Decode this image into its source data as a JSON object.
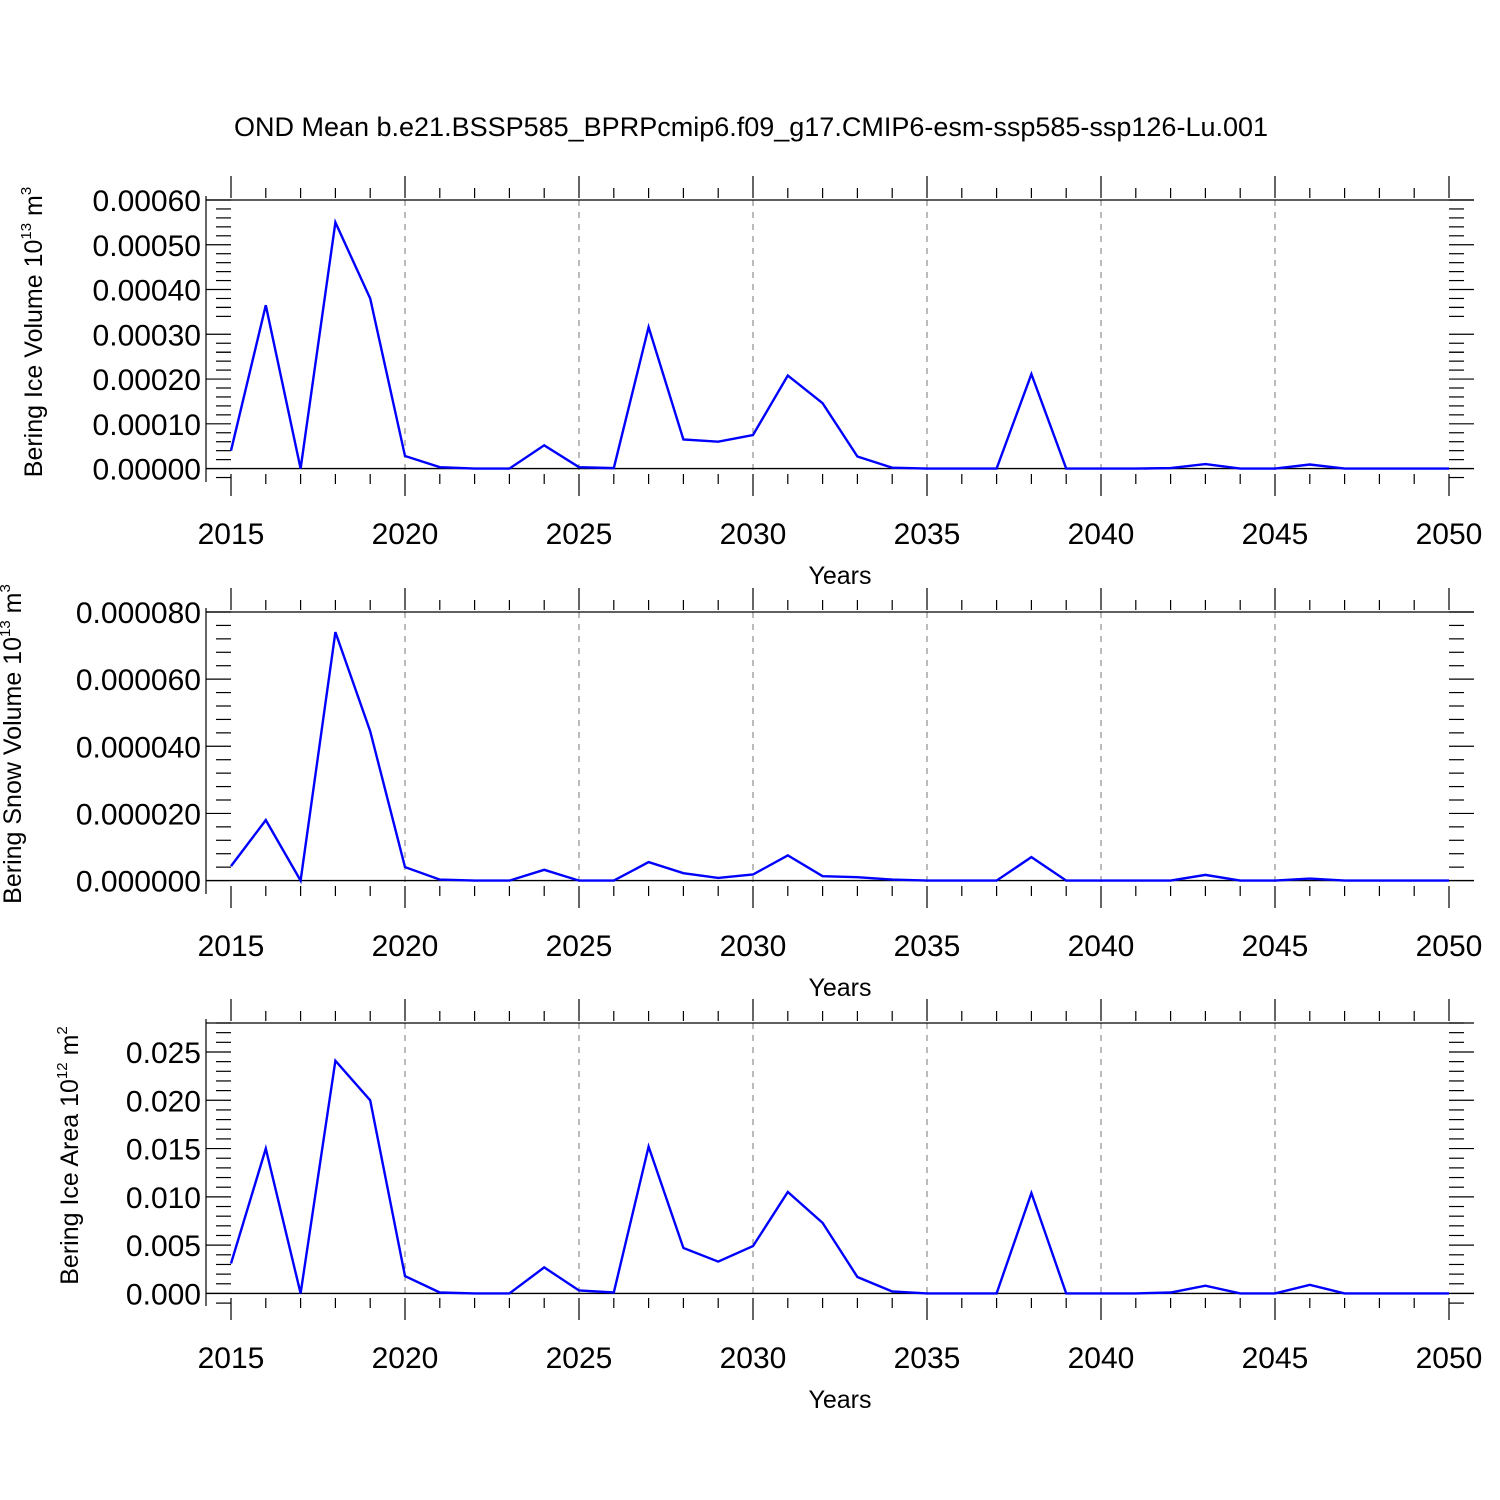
{
  "title": "OND Mean b.e21.BSSP585_BPRPcmip6.f09_g17.CMIP6-esm-ssp585-ssp126-Lu.001",
  "colors": {
    "line": "#0000ff",
    "axis": "#000000",
    "grid": "#777777"
  },
  "chart_data": [
    {
      "type": "line",
      "ylabel": "Bering Ice Volume 10",
      "ylabel_exponent": "13",
      "ylabel_unit": " m",
      "ylabel_unit_exponent": "3",
      "xlabel": "Years",
      "xlim": [
        2015,
        2050
      ],
      "ylim": [
        -3e-05,
        0.0006
      ],
      "yticks": [
        0,
        0.0001,
        0.0002,
        0.0003,
        0.0004,
        0.0005,
        0.0006
      ],
      "ytick_labels": [
        "0.00000",
        "0.00010",
        "0.00020",
        "0.00030",
        "0.00040",
        "0.00050",
        "0.00060"
      ],
      "xticks": [
        2015,
        2020,
        2025,
        2030,
        2035,
        2040,
        2045,
        2050
      ],
      "xtick_labels": [
        "2015",
        "2020",
        "2025",
        "2030",
        "2035",
        "2040",
        "2045",
        "2050"
      ],
      "grid": "vertical dashed at major x ticks",
      "x": [
        2015,
        2016,
        2017,
        2018,
        2019,
        2020,
        2021,
        2022,
        2023,
        2024,
        2025,
        2026,
        2027,
        2028,
        2029,
        2030,
        2031,
        2032,
        2033,
        2034,
        2035,
        2036,
        2037,
        2038,
        2039,
        2040,
        2041,
        2042,
        2043,
        2044,
        2045,
        2046,
        2047,
        2048,
        2049,
        2050
      ],
      "y": [
        4e-05,
        0.000365,
        0.0,
        0.00055,
        0.00038,
        2.8e-05,
        3e-06,
        0.0,
        0.0,
        5.2e-05,
        3e-06,
        1e-06,
        0.000316,
        6.5e-05,
        6e-05,
        7.5e-05,
        0.000208,
        0.000146,
        2.7e-05,
        2e-06,
        0.0,
        0.0,
        0.0,
        0.000211,
        0.0,
        0.0,
        0.0,
        1e-06,
        1e-05,
        0.0,
        0.0,
        9e-06,
        0.0,
        0.0,
        0.0,
        0.0
      ]
    },
    {
      "type": "line",
      "ylabel": "Bering Snow Volume 10",
      "ylabel_exponent": "13",
      "ylabel_unit": " m",
      "ylabel_unit_exponent": "3",
      "xlabel": "Years",
      "xlim": [
        2015,
        2050
      ],
      "ylim": [
        -4e-06,
        8e-05
      ],
      "yticks": [
        0,
        2e-05,
        4e-05,
        6e-05,
        8e-05
      ],
      "ytick_labels": [
        "0.000000",
        "0.000020",
        "0.000040",
        "0.000060",
        "0.000080"
      ],
      "xticks": [
        2015,
        2020,
        2025,
        2030,
        2035,
        2040,
        2045,
        2050
      ],
      "xtick_labels": [
        "2015",
        "2020",
        "2025",
        "2030",
        "2035",
        "2040",
        "2045",
        "2050"
      ],
      "grid": "vertical dashed at major x ticks",
      "x": [
        2015,
        2016,
        2017,
        2018,
        2019,
        2020,
        2021,
        2022,
        2023,
        2024,
        2025,
        2026,
        2027,
        2028,
        2029,
        2030,
        2031,
        2032,
        2033,
        2034,
        2035,
        2036,
        2037,
        2038,
        2039,
        2040,
        2041,
        2042,
        2043,
        2044,
        2045,
        2046,
        2047,
        2048,
        2049,
        2050
      ],
      "y": [
        4.3e-06,
        1.8e-05,
        0.0,
        7.4e-05,
        4.45e-05,
        4e-06,
        3e-07,
        0.0,
        0.0,
        3.2e-06,
        0.0,
        0.0,
        5.5e-06,
        2.2e-06,
        8e-07,
        1.8e-06,
        7.5e-06,
        1.3e-06,
        1e-06,
        3e-07,
        0.0,
        0.0,
        0.0,
        7e-06,
        0.0,
        0.0,
        0.0,
        0.0,
        1.7e-06,
        0.0,
        0.0,
        6e-07,
        0.0,
        0.0,
        0.0,
        0.0
      ]
    },
    {
      "type": "line",
      "ylabel": "Bering Ice Area 10",
      "ylabel_exponent": "12",
      "ylabel_unit": " m",
      "ylabel_unit_exponent": "2",
      "xlabel": "Years",
      "xlim": [
        2015,
        2050
      ],
      "ylim": [
        -0.0013,
        0.028
      ],
      "yticks": [
        0,
        0.005,
        0.01,
        0.015,
        0.02,
        0.025
      ],
      "ytick_labels": [
        "0.000",
        "0.005",
        "0.010",
        "0.015",
        "0.020",
        "0.025"
      ],
      "xticks": [
        2015,
        2020,
        2025,
        2030,
        2035,
        2040,
        2045,
        2050
      ],
      "xtick_labels": [
        "2015",
        "2020",
        "2025",
        "2030",
        "2035",
        "2040",
        "2045",
        "2050"
      ],
      "grid": "vertical dashed at major x ticks",
      "x": [
        2015,
        2016,
        2017,
        2018,
        2019,
        2020,
        2021,
        2022,
        2023,
        2024,
        2025,
        2026,
        2027,
        2028,
        2029,
        2030,
        2031,
        2032,
        2033,
        2034,
        2035,
        2036,
        2037,
        2038,
        2039,
        2040,
        2041,
        2042,
        2043,
        2044,
        2045,
        2046,
        2047,
        2048,
        2049,
        2050
      ],
      "y": [
        0.0031,
        0.015,
        0.0,
        0.0241,
        0.02,
        0.0018,
        0.0001,
        0.0,
        0.0,
        0.0027,
        0.0003,
        0.0001,
        0.0152,
        0.0047,
        0.0033,
        0.0049,
        0.0105,
        0.0073,
        0.0017,
        0.0002,
        0.0,
        0.0,
        0.0,
        0.0104,
        0.0,
        0.0,
        0.0,
        0.0001,
        0.0008,
        0.0,
        0.0,
        0.0009,
        0.0,
        0.0,
        0.0,
        0.0
      ]
    }
  ]
}
